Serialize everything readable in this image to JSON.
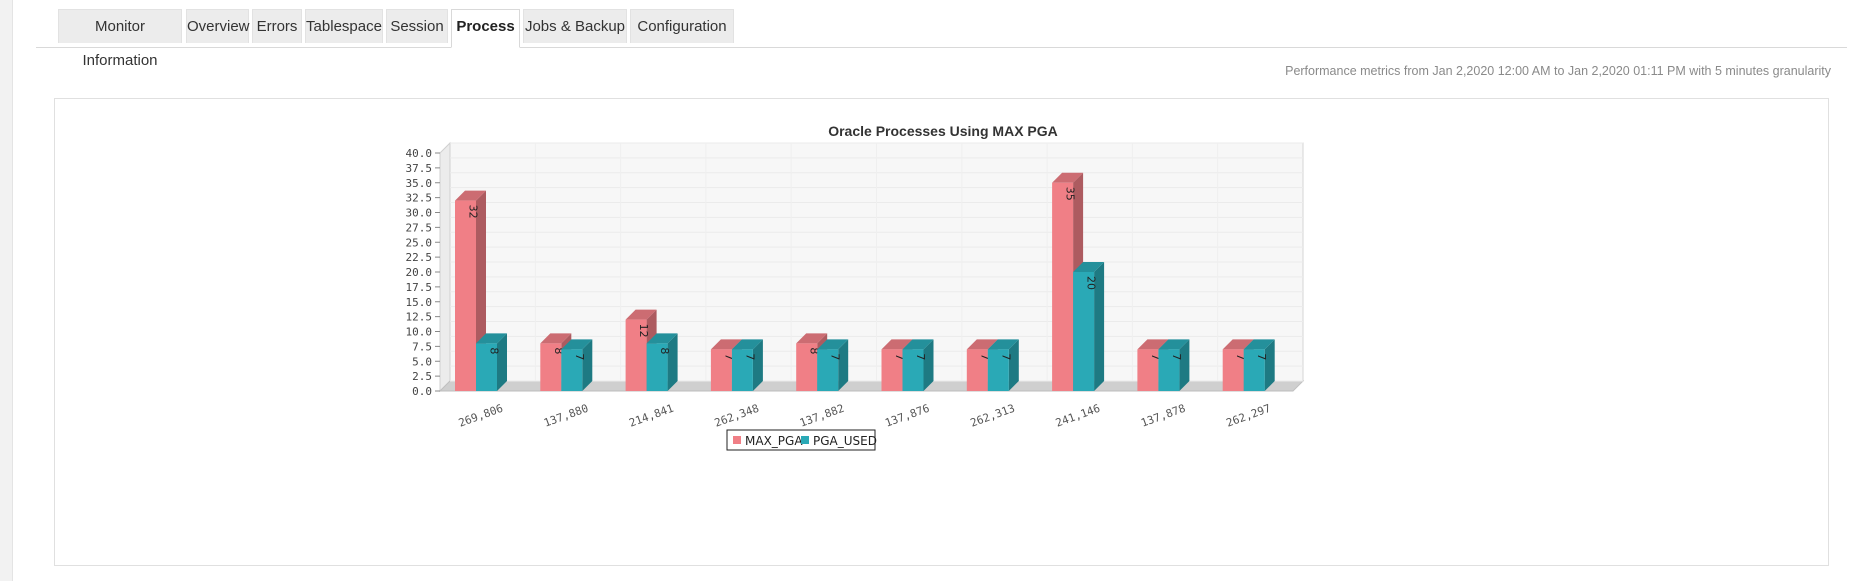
{
  "tabs": [
    {
      "label": "Monitor Information",
      "active": false
    },
    {
      "label": "Overview",
      "active": false
    },
    {
      "label": "Errors",
      "active": false
    },
    {
      "label": "Tablespace",
      "active": false
    },
    {
      "label": "Session",
      "active": false
    },
    {
      "label": "Process",
      "active": true
    },
    {
      "label": "Jobs & Backup",
      "active": false
    },
    {
      "label": "Configuration",
      "active": false
    }
  ],
  "performance_note": "Performance metrics from Jan 2,2020 12:00 AM to Jan 2,2020 01:11 PM with 5 minutes granularity",
  "chart_data": {
    "type": "bar",
    "title": "Oracle Processes Using MAX PGA",
    "xlabel": "",
    "ylabel": "",
    "categories": [
      "269,806",
      "137,880",
      "214,841",
      "262,348",
      "137,882",
      "137,876",
      "262,313",
      "241,146",
      "137,878",
      "262,297"
    ],
    "series": [
      {
        "name": "MAX_PGA",
        "color": "#f07f86",
        "values": [
          32,
          8,
          12,
          7,
          8,
          7,
          7,
          35,
          7,
          7
        ]
      },
      {
        "name": "PGA_USED",
        "color": "#2aa9b6",
        "values": [
          8,
          7,
          8,
          7,
          7,
          7,
          7,
          20,
          7,
          7
        ]
      }
    ],
    "yticks": [
      "0.0",
      "2.5",
      "5.0",
      "7.5",
      "10.0",
      "12.5",
      "15.0",
      "17.5",
      "20.0",
      "22.5",
      "25.0",
      "27.5",
      "30.0",
      "32.5",
      "35.0",
      "37.5",
      "40.0"
    ],
    "ylim": [
      0,
      40
    ],
    "grid": true,
    "legend_position": "bottom-center",
    "style": "3d"
  }
}
